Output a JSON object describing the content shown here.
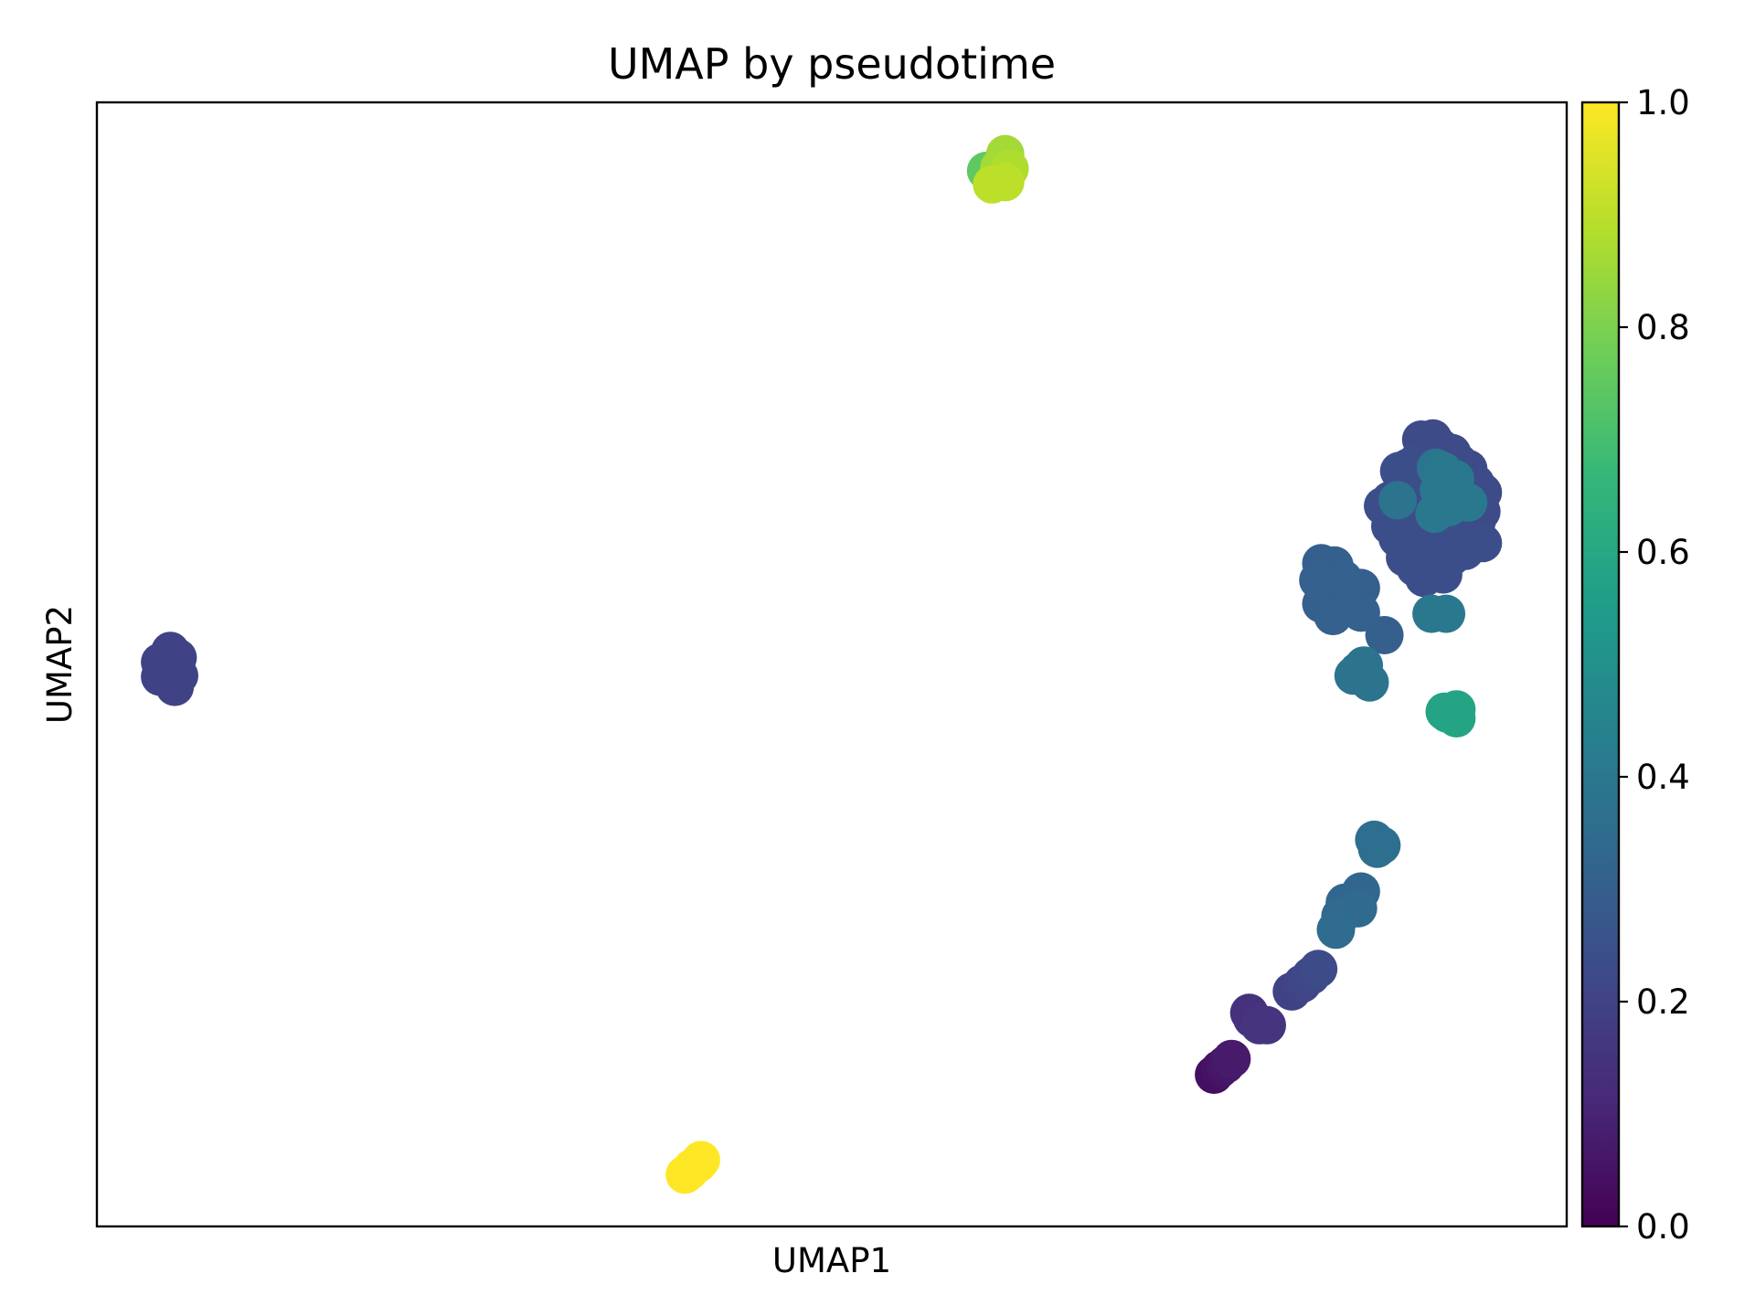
{
  "chart_data": {
    "type": "scatter",
    "title": "UMAP by pseudotime",
    "xlabel": "UMAP1",
    "ylabel": "UMAP2",
    "xlim": [
      0,
      100
    ],
    "ylim": [
      0,
      100
    ],
    "x_ticks_shown": false,
    "y_ticks_shown": false,
    "grid": false,
    "colormap": "viridis",
    "colorbar": {
      "range": [
        0.0,
        1.0
      ],
      "ticks": [
        "0.0",
        "0.2",
        "0.4",
        "0.6",
        "0.8",
        "1.0"
      ],
      "stops": [
        "#440154",
        "#482878",
        "#3e4989",
        "#31688e",
        "#26828e",
        "#1f9e89",
        "#35b779",
        "#6ece58",
        "#b5de2b",
        "#fde725"
      ]
    },
    "points": [
      [
        5.0,
        50.0,
        0.2
      ],
      [
        5.6,
        49.0,
        0.2
      ],
      [
        4.3,
        50.2,
        0.2
      ],
      [
        5.5,
        50.6,
        0.2
      ],
      [
        4.3,
        48.9,
        0.2
      ],
      [
        5.3,
        48.0,
        0.2
      ],
      [
        5.0,
        51.2,
        0.2
      ],
      [
        4.8,
        49.6,
        0.2
      ],
      [
        40.5,
        5.2,
        1.0
      ],
      [
        41.1,
        5.9,
        1.0
      ],
      [
        40.9,
        5.6,
        1.0
      ],
      [
        40.0,
        4.6,
        1.0
      ],
      [
        40.3,
        4.9,
        1.0
      ],
      [
        60.5,
        93.9,
        0.75
      ],
      [
        61.3,
        93.5,
        0.82
      ],
      [
        61.8,
        95.4,
        0.86
      ],
      [
        62.1,
        94.1,
        0.88
      ],
      [
        60.9,
        92.7,
        0.9
      ],
      [
        61.8,
        92.9,
        0.9
      ],
      [
        61.4,
        94.2,
        0.86
      ],
      [
        76.0,
        13.5,
        0.04
      ],
      [
        76.4,
        14.0,
        0.05
      ],
      [
        76.8,
        14.4,
        0.06
      ],
      [
        77.2,
        14.9,
        0.07
      ],
      [
        78.4,
        19.0,
        0.14
      ],
      [
        79.1,
        17.9,
        0.15
      ],
      [
        79.6,
        17.9,
        0.15
      ],
      [
        78.6,
        18.5,
        0.14
      ],
      [
        81.3,
        20.9,
        0.2
      ],
      [
        82.0,
        21.6,
        0.21
      ],
      [
        82.6,
        22.3,
        0.22
      ],
      [
        83.1,
        22.9,
        0.23
      ],
      [
        84.3,
        26.4,
        0.35
      ],
      [
        84.6,
        27.6,
        0.34
      ],
      [
        84.9,
        28.8,
        0.33
      ],
      [
        86.0,
        29.8,
        0.33
      ],
      [
        85.8,
        28.3,
        0.34
      ],
      [
        87.1,
        33.6,
        0.36
      ],
      [
        87.4,
        33.9,
        0.36
      ],
      [
        86.9,
        34.4,
        0.36
      ],
      [
        85.5,
        49.0,
        0.38
      ],
      [
        86.6,
        48.4,
        0.38
      ],
      [
        86.2,
        49.9,
        0.38
      ],
      [
        85.8,
        49.4,
        0.38
      ],
      [
        91.7,
        45.8,
        0.58
      ],
      [
        92.5,
        46.0,
        0.58
      ],
      [
        92.5,
        45.2,
        0.58
      ],
      [
        91.9,
        45.6,
        0.58
      ],
      [
        83.3,
        59.0,
        0.3
      ],
      [
        84.2,
        58.8,
        0.3
      ],
      [
        84.8,
        57.6,
        0.31
      ],
      [
        83.1,
        57.5,
        0.31
      ],
      [
        83.3,
        55.4,
        0.3
      ],
      [
        84.1,
        54.3,
        0.31
      ],
      [
        85.1,
        55.0,
        0.3
      ],
      [
        86.0,
        54.6,
        0.31
      ],
      [
        87.6,
        52.6,
        0.3
      ],
      [
        86.0,
        56.8,
        0.3
      ],
      [
        84.5,
        56.6,
        0.3
      ],
      [
        90.8,
        54.5,
        0.4
      ],
      [
        91.8,
        54.5,
        0.4
      ],
      [
        87.5,
        64.1,
        0.24
      ],
      [
        88.0,
        64.6,
        0.24
      ],
      [
        88.6,
        67.2,
        0.24
      ],
      [
        89.2,
        67.5,
        0.24
      ],
      [
        89.7,
        67.9,
        0.24
      ],
      [
        90.1,
        70.0,
        0.23
      ],
      [
        90.9,
        70.1,
        0.23
      ],
      [
        91.4,
        69.3,
        0.23
      ],
      [
        92.2,
        68.8,
        0.23
      ],
      [
        92.7,
        67.9,
        0.23
      ],
      [
        93.3,
        67.4,
        0.23
      ],
      [
        93.8,
        66.1,
        0.23
      ],
      [
        94.3,
        65.3,
        0.23
      ],
      [
        94.2,
        63.6,
        0.23
      ],
      [
        93.9,
        62.8,
        0.23
      ],
      [
        94.3,
        60.8,
        0.24
      ],
      [
        93.1,
        60.1,
        0.24
      ],
      [
        92.2,
        59.6,
        0.24
      ],
      [
        91.6,
        58.0,
        0.24
      ],
      [
        90.3,
        57.7,
        0.24
      ],
      [
        89.7,
        58.6,
        0.24
      ],
      [
        89.0,
        59.5,
        0.24
      ],
      [
        88.5,
        61.2,
        0.24
      ],
      [
        88.0,
        62.3,
        0.24
      ],
      [
        89.0,
        62.8,
        0.24
      ],
      [
        90.2,
        61.5,
        0.24
      ],
      [
        91.5,
        62.3,
        0.24
      ],
      [
        92.5,
        63.9,
        0.24
      ],
      [
        91.0,
        65.8,
        0.24
      ],
      [
        89.8,
        65.0,
        0.24
      ],
      [
        92.8,
        61.7,
        0.24
      ],
      [
        90.6,
        60.3,
        0.24
      ],
      [
        91.1,
        67.5,
        0.39
      ],
      [
        91.6,
        67.2,
        0.4
      ],
      [
        92.4,
        66.5,
        0.4
      ],
      [
        93.3,
        64.4,
        0.4
      ],
      [
        92.1,
        64.7,
        0.4
      ],
      [
        91.0,
        63.4,
        0.4
      ],
      [
        88.5,
        64.6,
        0.38
      ],
      [
        91.3,
        65.5,
        0.4
      ],
      [
        92.0,
        64.0,
        0.4
      ]
    ]
  }
}
